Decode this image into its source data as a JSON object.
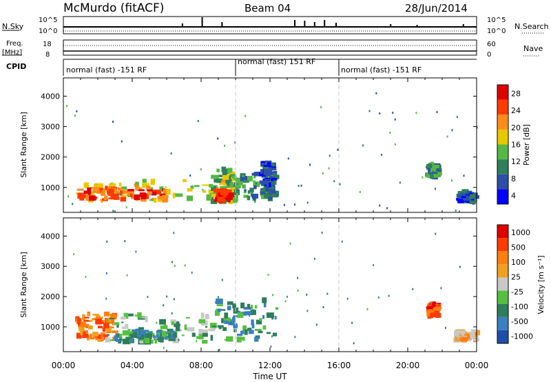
{
  "header": {
    "station": "McMurdo (fitACF)",
    "beam": "Beam 04",
    "date": "28/Jun/2014"
  },
  "chart_data": [
    {
      "type": "line",
      "panel": "nsky-nsearch",
      "left_label": "N.Sky",
      "right_label": "N.Search",
      "left_ticks": [
        "10^5",
        "10^0"
      ],
      "right_ticks": [
        "10^5",
        "10^0"
      ],
      "x_range_hours": [
        0,
        24
      ],
      "series": [
        {
          "name": "N.Sky",
          "style": "solid"
        },
        {
          "name": "N.Search",
          "style": "dotted"
        }
      ]
    },
    {
      "type": "line",
      "panel": "freq-nave",
      "left_label_lines": [
        "Freq.",
        "[MHz]"
      ],
      "right_label": "Nave",
      "left_ticks": [
        "18",
        "8"
      ],
      "right_ticks": [
        "60",
        "0"
      ],
      "series": [
        {
          "name": "Freq.",
          "style": "solid"
        },
        {
          "name": "Nave",
          "style": "dotted"
        }
      ]
    },
    {
      "type": "table",
      "panel": "cpid",
      "label": "CPID",
      "segments": [
        {
          "label": "normal (fast) -151 RF",
          "start_hour": 0,
          "end_hour": 10
        },
        {
          "label": "normal (fast) 151 RF",
          "start_hour": 10,
          "end_hour": 16
        },
        {
          "label": "normal (fast) -151 RF",
          "start_hour": 16,
          "end_hour": 24
        }
      ]
    },
    {
      "type": "heatmap",
      "panel": "power",
      "ylabel": "Slant Range [km]",
      "yticks": [
        1000,
        2000,
        3000,
        4000
      ],
      "ylim": [
        180,
        4600
      ],
      "colorbar_label": "Power [dB]",
      "colorbar_ticks": [
        "28",
        "24",
        "20",
        "16",
        "12",
        "8",
        "4"
      ],
      "colors": [
        "#0000ff",
        "#2d4fa8",
        "#2f7f5a",
        "#55b845",
        "#e8c800",
        "#ff8c1a",
        "#ff3b00",
        "#e00000"
      ],
      "blobs": [
        {
          "t0": 0.8,
          "t1": 9.6,
          "r0": 550,
          "r1": 1250,
          "level": 4
        },
        {
          "t0": 1.0,
          "t1": 6.0,
          "r0": 600,
          "r1": 1000,
          "level": 6
        },
        {
          "t0": 8.6,
          "t1": 10.0,
          "r0": 520,
          "r1": 1600,
          "level": 3
        },
        {
          "t0": 8.9,
          "t1": 9.8,
          "r0": 560,
          "r1": 900,
          "level": 7
        },
        {
          "t0": 10.0,
          "t1": 12.4,
          "r0": 600,
          "r1": 1500,
          "level": 2
        },
        {
          "t0": 11.5,
          "t1": 12.3,
          "r0": 700,
          "r1": 1800,
          "level": 1
        },
        {
          "t0": 21.2,
          "t1": 21.8,
          "r0": 1350,
          "r1": 1750,
          "level": 2
        },
        {
          "t0": 23.0,
          "t1": 24.0,
          "r0": 500,
          "r1": 850,
          "level": 1
        }
      ]
    },
    {
      "type": "heatmap",
      "panel": "velocity",
      "ylabel": "Slant Range [km]",
      "yticks": [
        1000,
        2000,
        3000,
        4000
      ],
      "ylim": [
        180,
        4600
      ],
      "colorbar_label": "Velocity [m s⁻¹]",
      "colorbar_ticks": [
        "1000",
        "500",
        "100",
        "25",
        "-25",
        "-100",
        "-500",
        "-1000"
      ],
      "colors": [
        "#1f4fa8",
        "#3a7fc0",
        "#2e7d5b",
        "#55c040",
        "#c8c8c8",
        "#f0a020",
        "#ff7f0e",
        "#ff3b00",
        "#e00000"
      ],
      "blobs": [
        {
          "t0": 0.8,
          "t1": 3.0,
          "r0": 550,
          "r1": 1450,
          "level": 6
        },
        {
          "t0": 2.5,
          "t1": 8.8,
          "r0": 500,
          "r1": 1400,
          "level": 3
        },
        {
          "t0": 3.0,
          "t1": 6.5,
          "r0": 500,
          "r1": 850,
          "level": 2
        },
        {
          "t0": 8.6,
          "t1": 12.4,
          "r0": 550,
          "r1": 1900,
          "level": 2
        },
        {
          "t0": 21.2,
          "t1": 21.8,
          "r0": 1350,
          "r1": 1750,
          "level": 7
        },
        {
          "t0": 22.8,
          "t1": 24.0,
          "r0": 550,
          "r1": 850,
          "level": 5
        }
      ]
    }
  ],
  "xaxis": {
    "ticks": [
      "00:00",
      "04:00",
      "08:00",
      "12:00",
      "16:00",
      "20:00",
      "00:00"
    ],
    "label": "Time UT"
  },
  "style": {
    "axis_color": "#000000",
    "dashed_color": "#c8c8c8"
  }
}
